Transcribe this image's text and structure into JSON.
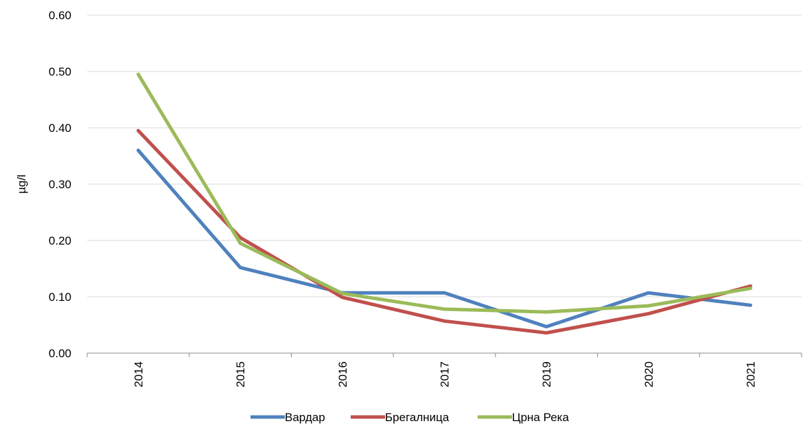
{
  "chart_data": {
    "type": "line",
    "ylabel": "µg/l",
    "ylim": [
      0,
      0.6
    ],
    "yticks": [
      "0.00",
      "0.10",
      "0.20",
      "0.30",
      "0.40",
      "0.50",
      "0.60"
    ],
    "grid": true,
    "legend_position": "bottom",
    "categories": [
      "2014",
      "2015",
      "2016",
      "2017",
      "2019",
      "2020",
      "2021"
    ],
    "series": [
      {
        "name": "Вардар",
        "color": "#4f81bd",
        "values": [
          0.36,
          0.152,
          0.107,
          0.107,
          0.047,
          0.107,
          0.085
        ]
      },
      {
        "name": "Брегалница",
        "color": "#c0504d",
        "values": [
          0.395,
          0.205,
          0.099,
          0.057,
          0.036,
          0.07,
          0.119
        ]
      },
      {
        "name": "Црна Река",
        "color": "#9bbb59",
        "values": [
          0.495,
          0.195,
          0.106,
          0.078,
          0.073,
          0.084,
          0.115
        ]
      }
    ]
  }
}
